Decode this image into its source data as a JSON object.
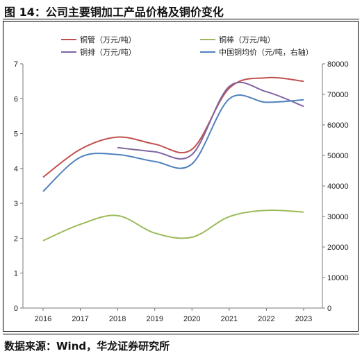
{
  "figure": {
    "title": "图 14：公司主要铜加工产品价格及铜价变化",
    "source": "数据来源：Wind，华龙证券研究所"
  },
  "chart_data": {
    "type": "line",
    "x": [
      "2016",
      "2017",
      "2018",
      "2019",
      "2020",
      "2021",
      "2022",
      "2023"
    ],
    "left_axis": {
      "ylim": [
        0,
        7
      ],
      "ticks": [
        0,
        1,
        2,
        3,
        4,
        5,
        6,
        7
      ]
    },
    "right_axis": {
      "ylim": [
        0,
        80000
      ],
      "ticks": [
        0,
        10000,
        20000,
        30000,
        40000,
        50000,
        60000,
        70000,
        80000
      ]
    },
    "grid": false,
    "legend_position": "top",
    "series": [
      {
        "name": "铜管（万元/吨）",
        "axis": "left",
        "color": "#c0504d",
        "values": [
          3.75,
          4.55,
          4.9,
          4.7,
          4.55,
          6.3,
          6.6,
          6.5
        ]
      },
      {
        "name": "铜棒（万元/吨）",
        "axis": "left",
        "color": "#9bbb59",
        "values": [
          1.93,
          2.4,
          2.65,
          2.15,
          2.03,
          2.62,
          2.8,
          2.75
        ]
      },
      {
        "name": "铜排（万元/吨）",
        "axis": "left",
        "color": "#8064a2",
        "values": [
          null,
          null,
          4.6,
          4.48,
          4.4,
          6.35,
          6.2,
          5.78
        ]
      },
      {
        "name": "中国铜均价（元/吨，右轴）",
        "axis": "right",
        "color": "#4f81bd",
        "values": [
          38200,
          49400,
          50300,
          48000,
          47200,
          68500,
          67400,
          68200
        ]
      }
    ]
  }
}
